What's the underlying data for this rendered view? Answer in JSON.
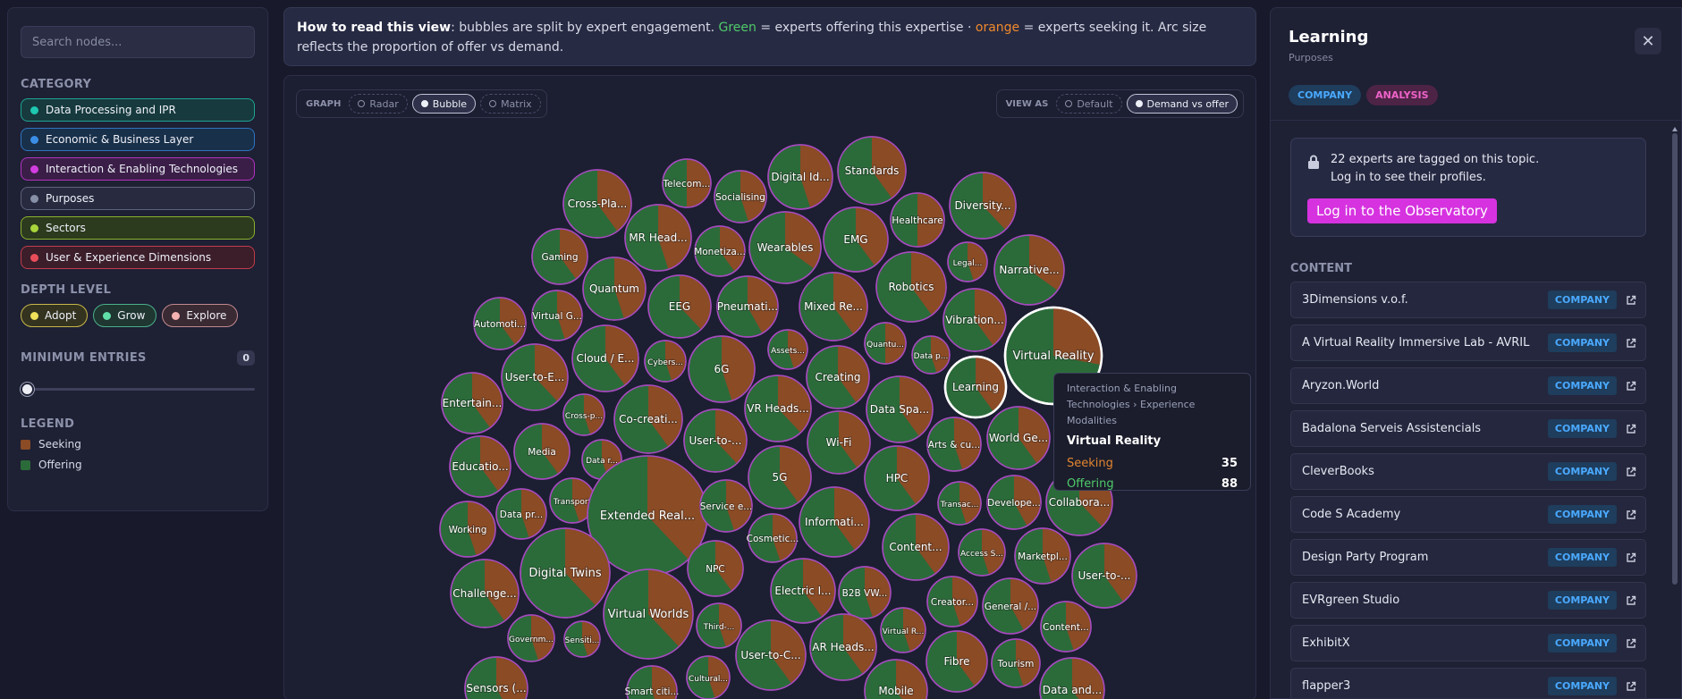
{
  "sidebar": {
    "search_placeholder": "Search nodes...",
    "category_title": "CATEGORY",
    "categories": [
      {
        "label": "Data Processing and IPR",
        "color": "#1ec8b1",
        "bg": "#163a3d",
        "border": "#1fa594"
      },
      {
        "label": "Economic & Business Layer",
        "color": "#3b8ee6",
        "bg": "#19304a",
        "border": "#2f74be"
      },
      {
        "label": "Interaction & Enabling Technologies",
        "color": "#d23ddf",
        "bg": "#3a1e47",
        "border": "#b133bf"
      },
      {
        "label": "Purposes",
        "color": "#8890a8",
        "bg": "#282b40",
        "border": "#5e637d"
      },
      {
        "label": "Sectors",
        "color": "#a8d63a",
        "bg": "#2c3a1e",
        "border": "#89b12e"
      },
      {
        "label": "User & Experience Dimensions",
        "color": "#ea4d5a",
        "bg": "#3b1e2a",
        "border": "#c13d4a"
      }
    ],
    "depth_title": "DEPTH LEVEL",
    "depth": [
      {
        "label": "Adopt",
        "color": "#efe05a",
        "bg": "#33331f",
        "border": "#c9b84a"
      },
      {
        "label": "Grow",
        "color": "#5fe0a8",
        "bg": "#1f3631",
        "border": "#4ab08a"
      },
      {
        "label": "Explore",
        "color": "#f5b2b2",
        "bg": "#3a2a33",
        "border": "#c08a8e"
      }
    ],
    "min_title": "MINIMUM ENTRIES",
    "min_value": "0",
    "legend_title": "LEGEND",
    "legend": [
      {
        "label": "Seeking",
        "color": "#8a4b25"
      },
      {
        "label": "Offering",
        "color": "#2b6b3a"
      }
    ]
  },
  "info": {
    "lead": "How to read this view",
    "t1": ": bubbles are split by expert engagement. ",
    "green": "Green",
    "t2": " = experts offering this expertise · ",
    "orange": "orange",
    "t3": " = experts seeking it. Arc size reflects the proportion of offer vs demand."
  },
  "toolbar": {
    "graph_label": "GRAPH",
    "graph_options": [
      "Radar",
      "Bubble",
      "Matrix"
    ],
    "graph_active": "Bubble",
    "view_label": "VIEW AS",
    "view_options": [
      "Default",
      "Demand vs offer"
    ],
    "view_active": "Demand vs offer"
  },
  "chart_data": {
    "type": "bubble",
    "value_meaning": "green slice = offering share, orange slice = seeking share",
    "bubbles": [
      {
        "label": "Standards",
        "offer": 0.6
      },
      {
        "label": "Digital Id...",
        "offer": 0.55
      },
      {
        "label": "Telecom...",
        "offer": 0.5
      },
      {
        "label": "Socialising",
        "offer": 0.55
      },
      {
        "label": "Cross-Pla...",
        "offer": 0.6
      },
      {
        "label": "Diversity...",
        "offer": 0.62
      },
      {
        "label": "Healthcare",
        "offer": 0.5
      },
      {
        "label": "MR Head...",
        "offer": 0.55
      },
      {
        "label": "Monetiza...",
        "offer": 0.6
      },
      {
        "label": "Wearables",
        "offer": 0.65
      },
      {
        "label": "EMG",
        "offer": 0.6
      },
      {
        "label": "Gaming",
        "offer": 0.6
      },
      {
        "label": "Legal...",
        "offer": 0.55
      },
      {
        "label": "Narrative...",
        "offer": 0.65
      },
      {
        "label": "Quantum",
        "offer": 0.55
      },
      {
        "label": "Robotics",
        "offer": 0.6
      },
      {
        "label": "EEG",
        "offer": 0.62
      },
      {
        "label": "Pneumati...",
        "offer": 0.58
      },
      {
        "label": "Mixed Re...",
        "offer": 0.6
      },
      {
        "label": "Automoti...",
        "offer": 0.6
      },
      {
        "label": "Virtual G...",
        "offer": 0.55
      },
      {
        "label": "Vibration...",
        "offer": 0.6
      },
      {
        "label": "Assets...",
        "offer": 0.55
      },
      {
        "label": "Quantu...",
        "offer": 0.5
      },
      {
        "label": "Cloud / E...",
        "offer": 0.6
      },
      {
        "label": "Cybers...",
        "offer": 0.55
      },
      {
        "label": "Data p...",
        "offer": 0.55
      },
      {
        "label": "6G",
        "offer": 0.55
      },
      {
        "label": "User-to-E...",
        "offer": 0.62
      },
      {
        "label": "Creating",
        "offer": 0.6
      },
      {
        "label": "Virtual Reality",
        "offer": 0.72
      },
      {
        "label": "Learning",
        "offer": 0.6
      },
      {
        "label": "Entertain...",
        "offer": 0.6
      },
      {
        "label": "VR Heads...",
        "offer": 0.62
      },
      {
        "label": "Cross-p...",
        "offer": 0.55
      },
      {
        "label": "Co-creati...",
        "offer": 0.6
      },
      {
        "label": "Data Spa...",
        "offer": 0.6
      },
      {
        "label": "Media",
        "offer": 0.6
      },
      {
        "label": "User-to-...",
        "offer": 0.62
      },
      {
        "label": "Wi-Fi",
        "offer": 0.6
      },
      {
        "label": "Arts & cu...",
        "offer": 0.55
      },
      {
        "label": "World Ge...",
        "offer": 0.6
      },
      {
        "label": "Educatio...",
        "offer": 0.6
      },
      {
        "label": "Data r...",
        "offer": 0.55
      },
      {
        "label": "5G",
        "offer": 0.6
      },
      {
        "label": "HPC",
        "offer": 0.6
      },
      {
        "label": "Transport",
        "offer": 0.55
      },
      {
        "label": "Extended Real...",
        "offer": 0.62
      },
      {
        "label": "Service e...",
        "offer": 0.55
      },
      {
        "label": "Transac...",
        "offer": 0.55
      },
      {
        "label": "Develope...",
        "offer": 0.58
      },
      {
        "label": "Collabora...",
        "offer": 0.62
      },
      {
        "label": "Data pr...",
        "offer": 0.55
      },
      {
        "label": "Informati...",
        "offer": 0.6
      },
      {
        "label": "Working",
        "offer": 0.55
      },
      {
        "label": "Cosmetic...",
        "offer": 0.55
      },
      {
        "label": "Content...",
        "offer": 0.6
      },
      {
        "label": "Access S...",
        "offer": 0.55
      },
      {
        "label": "Marketpl...",
        "offer": 0.55
      },
      {
        "label": "Digital Twins",
        "offer": 0.62
      },
      {
        "label": "NPC",
        "offer": 0.6
      },
      {
        "label": "User-to-...",
        "offer": 0.6
      },
      {
        "label": "Challenge...",
        "offer": 0.6
      },
      {
        "label": "Electric I...",
        "offer": 0.6
      },
      {
        "label": "B2B VW...",
        "offer": 0.55
      },
      {
        "label": "Creator...",
        "offer": 0.55
      },
      {
        "label": "General /...",
        "offer": 0.58
      },
      {
        "label": "Virtual Worlds",
        "offer": 0.62
      },
      {
        "label": "Third-...",
        "offer": 0.55
      },
      {
        "label": "Governm...",
        "offer": 0.55
      },
      {
        "label": "Sensiti...",
        "offer": 0.55
      },
      {
        "label": "User-to-C...",
        "offer": 0.6
      },
      {
        "label": "AR Heads...",
        "offer": 0.6
      },
      {
        "label": "Virtual R...",
        "offer": 0.55
      },
      {
        "label": "Content...",
        "offer": 0.55
      },
      {
        "label": "Fibre",
        "offer": 0.6
      },
      {
        "label": "Tourism",
        "offer": 0.55
      },
      {
        "label": "Cultural...",
        "offer": 0.55
      },
      {
        "label": "Sensors (...",
        "offer": 0.58
      },
      {
        "label": "Smart citi...",
        "offer": 0.55
      },
      {
        "label": "Mobile",
        "offer": 0.6
      },
      {
        "label": "Data and...",
        "offer": 0.6
      }
    ]
  },
  "tooltip": {
    "path": "Interaction & Enabling Technologies › Experience Modalities",
    "title": "Virtual Reality",
    "seeking_label": "Seeking",
    "seeking_value": "35",
    "offering_label": "Offering",
    "offering_value": "88",
    "seeking_color": "#e2852f",
    "offering_color": "#4fca6a"
  },
  "panel": {
    "title": "Learning",
    "subtitle": "Purposes",
    "tags": [
      "COMPANY",
      "ANALYSIS"
    ],
    "login_text_1": "22 experts are tagged on this topic.",
    "login_text_2": "Log in to see their profiles.",
    "login_button": "Log in to the Observatory",
    "content_title": "CONTENT",
    "items": [
      {
        "name": "3Dimensions v.o.f.",
        "tag": "COMPANY"
      },
      {
        "name": "A Virtual Reality Immersive Lab - AVRIL",
        "tag": "COMPANY"
      },
      {
        "name": "Aryzon.World",
        "tag": "COMPANY"
      },
      {
        "name": "Badalona Serveis Assistencials",
        "tag": "COMPANY"
      },
      {
        "name": "CleverBooks",
        "tag": "COMPANY"
      },
      {
        "name": "Code S Academy",
        "tag": "COMPANY"
      },
      {
        "name": "Design Party Program",
        "tag": "COMPANY"
      },
      {
        "name": "EVRgreen Studio",
        "tag": "COMPANY"
      },
      {
        "name": "ExhibitX",
        "tag": "COMPANY"
      },
      {
        "name": "flapper3",
        "tag": "COMPANY"
      }
    ]
  }
}
